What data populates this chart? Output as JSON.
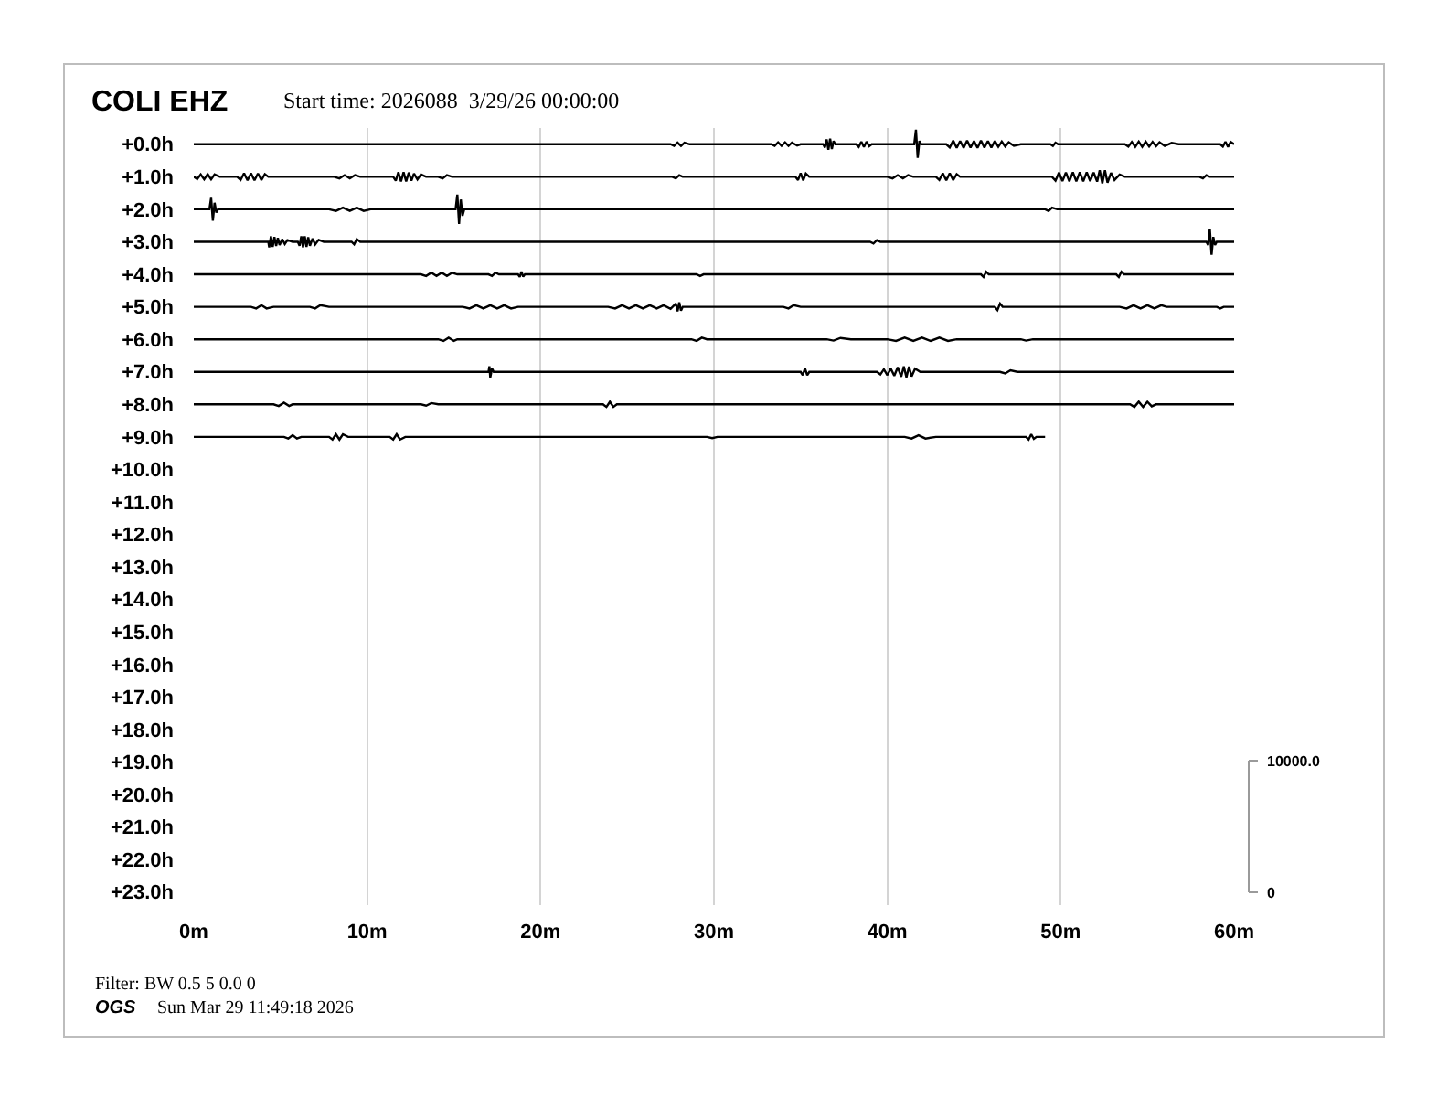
{
  "chart_data": {
    "type": "line",
    "title": "COLI EHZ",
    "subtitle": "Start time: 2026088  3/29/26 00:00:00",
    "annotations": [
      "10000.0",
      "0",
      "Filter: BW 0.5 5 0.0 0",
      "OGS",
      "Sun Mar 29 11:49:18 2026"
    ],
    "xlim": [
      0,
      60
    ],
    "xticks": [
      {
        "value": 0,
        "label": "0m"
      },
      {
        "value": 10,
        "label": "10m"
      },
      {
        "value": 20,
        "label": "20m"
      },
      {
        "value": 30,
        "label": "30m"
      },
      {
        "value": 40,
        "label": "40m"
      },
      {
        "value": 50,
        "label": "50m"
      },
      {
        "value": 60,
        "label": "60m"
      }
    ],
    "ylim": [
      23.4,
      -0.5
    ],
    "yticks": [
      {
        "value": 0,
        "label": "+0.0h"
      },
      {
        "value": 1,
        "label": "+1.0h"
      },
      {
        "value": 2,
        "label": "+2.0h"
      },
      {
        "value": 3,
        "label": "+3.0h"
      },
      {
        "value": 4,
        "label": "+4.0h"
      },
      {
        "value": 5,
        "label": "+5.0h"
      },
      {
        "value": 6,
        "label": "+6.0h"
      },
      {
        "value": 7,
        "label": "+7.0h"
      },
      {
        "value": 8,
        "label": "+8.0h"
      },
      {
        "value": 9,
        "label": "+9.0h"
      },
      {
        "value": 10,
        "label": "+10.0h"
      },
      {
        "value": 11,
        "label": "+11.0h"
      },
      {
        "value": 12,
        "label": "+12.0h"
      },
      {
        "value": 13,
        "label": "+13.0h"
      },
      {
        "value": 14,
        "label": "+14.0h"
      },
      {
        "value": 15,
        "label": "+15.0h"
      },
      {
        "value": 16,
        "label": "+16.0h"
      },
      {
        "value": 17,
        "label": "+17.0h"
      },
      {
        "value": 18,
        "label": "+18.0h"
      },
      {
        "value": 19,
        "label": "+19.0h"
      },
      {
        "value": 20,
        "label": "+20.0h"
      },
      {
        "value": 21,
        "label": "+21.0h"
      },
      {
        "value": 22,
        "label": "+22.0h"
      },
      {
        "value": 23,
        "label": "+23.0h"
      }
    ],
    "grid": "x",
    "series": [
      {
        "color": "#000000",
        "x": [
          0,
          10,
          20,
          27.5,
          27.7,
          27.9,
          28.1,
          28.3,
          28.6,
          33.3,
          33.5,
          33.7,
          33.9,
          34.1,
          34.3,
          34.5,
          34.8,
          35.0,
          36.3,
          36.4,
          36.5,
          36.6,
          36.7,
          36.8,
          36.9,
          37.0,
          38.2,
          38.35,
          38.5,
          38.65,
          38.8,
          38.95,
          39.1,
          41.55,
          41.65,
          41.75,
          41.85,
          41.95,
          43.4,
          43.6,
          43.8,
          44.0,
          44.2,
          44.4,
          44.6,
          44.8,
          45.0,
          45.2,
          45.4,
          45.6,
          45.8,
          46.0,
          46.2,
          46.4,
          46.6,
          46.8,
          47.0,
          47.3,
          47.7,
          49.4,
          49.55,
          49.7,
          49.85,
          53.7,
          53.9,
          54.1,
          54.3,
          54.5,
          54.7,
          54.9,
          55.1,
          55.3,
          55.5,
          55.7,
          56.0,
          56.4,
          56.8,
          59.2,
          59.35,
          59.5,
          59.65,
          59.8,
          60
        ],
        "values": [
          0,
          0,
          0,
          0,
          0.05,
          -0.05,
          0.05,
          -0.05,
          0,
          0,
          0.05,
          -0.06,
          0.05,
          -0.06,
          0.05,
          -0.05,
          0.04,
          0,
          0,
          0.1,
          -0.15,
          0.17,
          -0.17,
          0.15,
          -0.1,
          0,
          0,
          0.08,
          -0.08,
          0.08,
          -0.08,
          0.06,
          0,
          0,
          -0.45,
          0.42,
          -0.1,
          0,
          0,
          0.1,
          -0.11,
          0.11,
          -0.1,
          0.11,
          -0.11,
          0.1,
          -0.1,
          0.11,
          -0.11,
          0.1,
          -0.1,
          0.1,
          -0.1,
          0.08,
          -0.08,
          0.07,
          -0.06,
          0.05,
          0,
          0,
          0.05,
          -0.05,
          0,
          0,
          0.07,
          -0.07,
          0.08,
          -0.08,
          0.08,
          -0.08,
          0.07,
          -0.07,
          0.06,
          -0.06,
          0.05,
          -0.04,
          0,
          0,
          0.07,
          -0.08,
          0.08,
          -0.07,
          0
        ]
      },
      {
        "color": "#000000",
        "x": [
          0,
          0.2,
          0.4,
          0.6,
          0.8,
          1.0,
          1.2,
          1.5,
          2.5,
          2.7,
          2.9,
          3.1,
          3.3,
          3.5,
          3.7,
          3.9,
          4.1,
          4.3,
          8.1,
          8.4,
          8.7,
          9.0,
          9.3,
          9.6,
          11.5,
          11.65,
          11.8,
          11.95,
          12.1,
          12.25,
          12.4,
          12.55,
          12.7,
          12.9,
          13.1,
          13.4,
          14.1,
          14.35,
          14.6,
          14.9,
          27.6,
          27.8,
          28.0,
          28.2,
          34.7,
          34.85,
          35.0,
          35.15,
          35.3,
          35.5,
          40.0,
          40.3,
          40.6,
          40.9,
          41.2,
          41.5,
          42.8,
          43.0,
          43.2,
          43.4,
          43.6,
          43.8,
          44.0,
          44.2,
          49.5,
          49.7,
          49.9,
          50.1,
          50.3,
          50.5,
          50.7,
          50.9,
          51.1,
          51.3,
          51.5,
          51.7,
          51.9,
          52.1,
          52.25,
          52.4,
          52.55,
          52.7,
          52.9,
          53.1,
          53.4,
          53.7,
          58.0,
          58.2,
          58.4,
          58.6,
          60
        ],
        "values": [
          1,
          1.07,
          0.93,
          1.08,
          0.92,
          1.08,
          0.93,
          1,
          1,
          1.1,
          0.89,
          1.11,
          0.89,
          1.11,
          0.9,
          1.1,
          0.92,
          1,
          1,
          1.05,
          0.95,
          1.05,
          0.95,
          1,
          1,
          1.12,
          0.86,
          1.14,
          0.86,
          1.14,
          0.87,
          1.12,
          0.9,
          1.08,
          0.93,
          1,
          1,
          1.05,
          0.95,
          1,
          1,
          1.05,
          0.95,
          1,
          1,
          1.1,
          0.89,
          1.11,
          0.9,
          1,
          1,
          1.05,
          0.95,
          1.05,
          0.95,
          1,
          1,
          1.1,
          0.89,
          1.11,
          0.89,
          1.1,
          0.92,
          1,
          1,
          1.12,
          0.87,
          1.13,
          0.87,
          1.14,
          0.86,
          1.14,
          0.86,
          1.14,
          0.86,
          1.13,
          0.87,
          1.15,
          0.8,
          1.2,
          0.8,
          1.18,
          0.88,
          1.1,
          0.93,
          1,
          1,
          1.05,
          0.95,
          1,
          1
        ]
      },
      {
        "color": "#000000",
        "x": [
          0,
          0.9,
          1.0,
          1.1,
          1.2,
          1.3,
          1.4,
          7.8,
          8.2,
          8.6,
          9.0,
          9.4,
          9.8,
          10.2,
          15.1,
          15.2,
          15.3,
          15.4,
          15.5,
          15.6,
          49.1,
          49.3,
          49.5,
          49.8,
          60
        ],
        "values": [
          2,
          2,
          1.65,
          2.35,
          1.8,
          2.1,
          2,
          2,
          2.05,
          1.95,
          2.05,
          1.95,
          2.05,
          2,
          2,
          1.55,
          2.45,
          1.7,
          2.2,
          2,
          2,
          2.05,
          1.95,
          2,
          2
        ]
      },
      {
        "color": "#000000",
        "x": [
          0,
          4.3,
          4.35,
          4.45,
          4.55,
          4.65,
          4.75,
          4.85,
          4.95,
          5.1,
          5.25,
          5.4,
          5.7,
          6.0,
          6.1,
          6.2,
          6.3,
          6.4,
          6.5,
          6.6,
          6.7,
          6.85,
          7.0,
          7.2,
          7.5,
          9.1,
          9.25,
          9.4,
          9.6,
          39.0,
          39.2,
          39.4,
          39.6,
          58.4,
          58.5,
          58.6,
          58.7,
          58.8,
          58.9,
          59.0,
          60
        ],
        "values": [
          3,
          3,
          3.17,
          2.83,
          3.16,
          2.85,
          3.13,
          2.88,
          3.1,
          2.92,
          3.07,
          2.95,
          3,
          3,
          3.12,
          2.83,
          3.17,
          2.83,
          3.16,
          2.86,
          3.12,
          2.9,
          3.08,
          2.94,
          3,
          3,
          3.08,
          2.92,
          3,
          3,
          3.05,
          2.95,
          3,
          3,
          3.1,
          2.6,
          3.4,
          2.85,
          3.1,
          3,
          3
        ]
      },
      {
        "color": "#000000",
        "x": [
          0,
          13.1,
          13.4,
          13.7,
          14.0,
          14.3,
          14.6,
          14.9,
          15.2,
          17.0,
          17.2,
          17.4,
          17.6,
          18.7,
          18.8,
          18.9,
          19.0,
          19.1,
          29.0,
          29.2,
          29.4,
          45.4,
          45.55,
          45.7,
          45.85,
          53.2,
          53.35,
          53.5,
          53.65,
          60
        ],
        "values": [
          4,
          4,
          4.05,
          3.95,
          4.05,
          3.95,
          4.05,
          3.95,
          4,
          4,
          4.05,
          3.95,
          4,
          4,
          4.08,
          3.92,
          4.07,
          4,
          4,
          4.05,
          4,
          4,
          4.08,
          3.92,
          4,
          4,
          4.08,
          3.92,
          4,
          4
        ]
      },
      {
        "color": "#000000",
        "x": [
          0,
          3.3,
          3.6,
          3.9,
          4.2,
          4.6,
          6.7,
          7.0,
          7.3,
          7.8,
          15.5,
          15.9,
          16.3,
          16.7,
          17.1,
          17.5,
          17.9,
          18.3,
          18.7,
          23.9,
          24.3,
          24.7,
          25.1,
          25.5,
          25.9,
          26.3,
          26.7,
          27.1,
          27.5,
          27.8,
          27.9,
          28.0,
          28.1,
          28.2,
          34.0,
          34.3,
          34.6,
          35.0,
          46.2,
          46.35,
          46.5,
          46.65,
          53.4,
          53.8,
          54.2,
          54.6,
          55.0,
          55.4,
          55.8,
          56.1,
          59.0,
          59.2,
          59.4,
          60
        ],
        "values": [
          5,
          5,
          5.05,
          4.95,
          5.05,
          5,
          5,
          5.05,
          4.95,
          5,
          5,
          5.05,
          4.95,
          5.05,
          4.95,
          5.05,
          4.95,
          5.05,
          5,
          5,
          5.05,
          4.95,
          5.05,
          4.95,
          5.05,
          4.95,
          5.05,
          4.95,
          5.06,
          4.9,
          5.14,
          4.86,
          5.12,
          5,
          5,
          5.05,
          4.95,
          5,
          5,
          5.1,
          4.9,
          5,
          5,
          5.05,
          4.95,
          5.05,
          4.95,
          5.05,
          4.95,
          5,
          5,
          5.05,
          5,
          5
        ]
      },
      {
        "color": "#000000",
        "x": [
          0,
          14.1,
          14.4,
          14.7,
          15.0,
          15.2,
          28.7,
          29.0,
          29.3,
          29.6,
          36.5,
          36.9,
          37.3,
          37.9,
          40.0,
          40.5,
          41.0,
          41.5,
          42.0,
          42.5,
          43.0,
          43.5,
          44.0,
          47.7,
          48.0,
          48.4,
          60
        ],
        "values": [
          6,
          6,
          6.05,
          5.95,
          6.05,
          6,
          6,
          6.05,
          5.95,
          6,
          6,
          6.04,
          5.96,
          6,
          6,
          6.05,
          5.95,
          6.05,
          5.95,
          6.05,
          5.95,
          6.05,
          6,
          6,
          6.04,
          6,
          6
        ]
      },
      {
        "color": "#000000",
        "x": [
          0,
          17.0,
          17.05,
          17.1,
          17.2,
          17.3,
          35.0,
          35.12,
          35.25,
          35.38,
          35.5,
          39.4,
          39.6,
          39.8,
          40.0,
          40.2,
          40.4,
          40.6,
          40.8,
          40.95,
          41.1,
          41.25,
          41.4,
          41.6,
          41.9,
          46.5,
          46.8,
          47.1,
          47.5,
          60
        ],
        "values": [
          7,
          7,
          6.83,
          7.17,
          6.9,
          7,
          7,
          7.1,
          6.89,
          7.1,
          7,
          7,
          7.08,
          6.92,
          7.1,
          6.9,
          7.12,
          6.86,
          7.15,
          6.83,
          7.17,
          6.84,
          7.14,
          6.9,
          7,
          7,
          7.05,
          6.95,
          7,
          7
        ]
      },
      {
        "color": "#000000",
        "x": [
          0,
          4.6,
          4.9,
          5.2,
          5.5,
          5.7,
          13.1,
          13.4,
          13.7,
          14.1,
          23.6,
          23.8,
          24.0,
          24.2,
          24.4,
          54.0,
          54.25,
          54.5,
          54.75,
          55.0,
          55.25,
          55.5,
          60
        ],
        "values": [
          8,
          8,
          8.05,
          7.95,
          8.05,
          8,
          8,
          8.04,
          7.96,
          8,
          8,
          8.08,
          7.92,
          8.08,
          8,
          8,
          8.08,
          7.92,
          8.08,
          7.92,
          8.06,
          8,
          8
        ]
      },
      {
        "color": "#000000",
        "x": [
          0,
          5.2,
          5.45,
          5.7,
          5.95,
          6.2,
          7.8,
          8.0,
          8.2,
          8.4,
          8.6,
          8.9,
          11.3,
          11.5,
          11.7,
          11.9,
          12.2,
          29.6,
          29.9,
          30.2,
          41.0,
          41.4,
          41.8,
          42.2,
          42.8,
          48.0,
          48.15,
          48.3,
          48.45,
          48.6,
          49.1
        ],
        "values": [
          9,
          9,
          9.05,
          8.95,
          9.05,
          9,
          9,
          9.08,
          8.92,
          9.08,
          8.92,
          9,
          9,
          9.08,
          8.92,
          9.08,
          9,
          9,
          9.04,
          9,
          9,
          9.05,
          8.95,
          9.05,
          9,
          9,
          9.08,
          8.92,
          9.06,
          9,
          9
        ]
      }
    ]
  }
}
